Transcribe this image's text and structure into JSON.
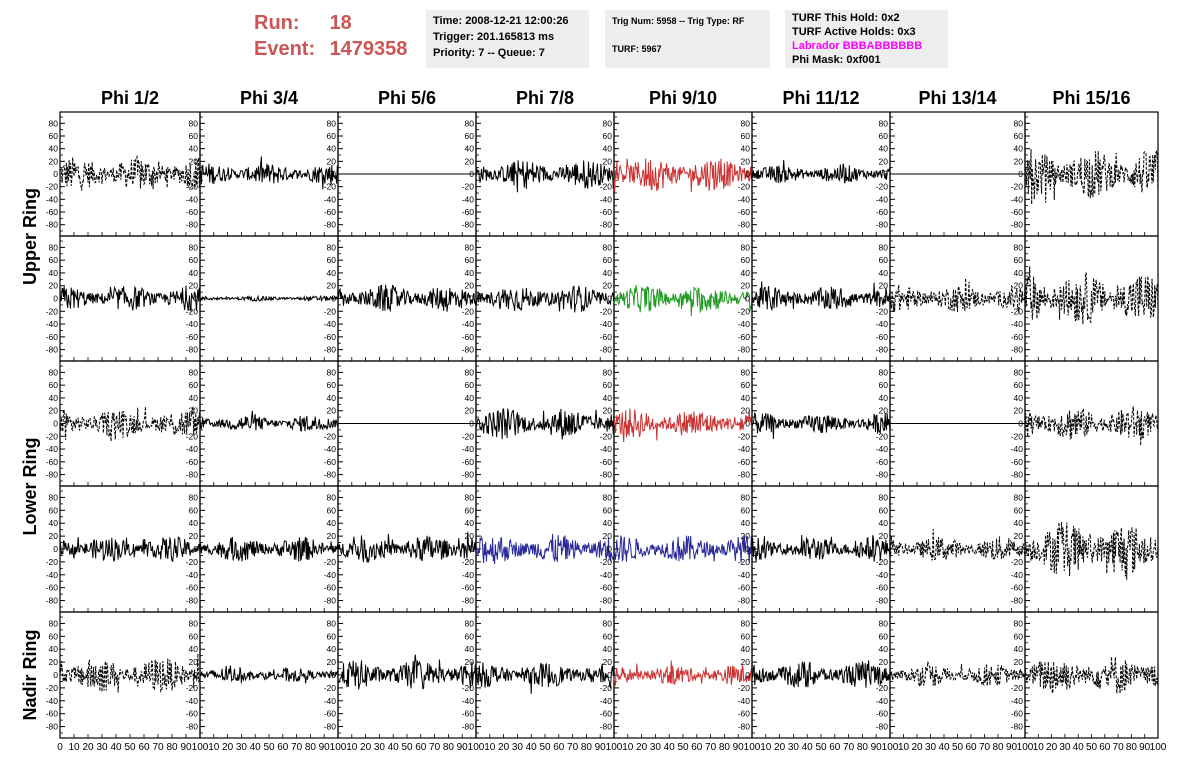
{
  "header": {
    "run_label": "Run:",
    "run_value": "18",
    "event_label": "Event:",
    "event_value": "1479358",
    "box1": [
      "Time: 2008-12-21 12:00:26",
      "Trigger: 201.165813 ms",
      "Priority: 7 -- Queue: 7"
    ],
    "box2_line1": "Trig Num: 5958 -- Trig Type: RF",
    "box2_line2": "TURF: 5967",
    "box3_line1": "TURF This Hold: 0x2",
    "box3_line2": "TURF Active Holds: 0x3",
    "box3_line3": "Labrador BBBABBBBBB",
    "box3_line4": "Phi Mask: 0xf001"
  },
  "colors": {
    "run_text": "#cc5555",
    "info_bg": "#eeeeee",
    "labrador": "#ff00ff",
    "trace_black": "#000000",
    "trace_red": "#cc3333",
    "trace_green": "#229922",
    "trace_blue": "#2a2a99"
  },
  "chart_data": {
    "type": "line",
    "columns": [
      "Phi 1/2",
      "Phi 3/4",
      "Phi 5/6",
      "Phi 7/8",
      "Phi 9/10",
      "Phi 11/12",
      "Phi 13/14",
      "Phi 15/16"
    ],
    "row_groups": [
      {
        "label": "Upper Ring",
        "rows": [
          0,
          1
        ]
      },
      {
        "label": "Lower Ring",
        "rows": [
          2,
          3
        ]
      },
      {
        "label": "Nadir Ring",
        "rows": [
          4
        ]
      }
    ],
    "xlim": [
      0,
      100
    ],
    "xticks": [
      0,
      10,
      20,
      30,
      40,
      50,
      60,
      70,
      80,
      90,
      100
    ],
    "xtick_labels_first": [
      "0",
      "10",
      "20",
      "30",
      "40",
      "50",
      "60",
      "70",
      "80",
      "90",
      "100"
    ],
    "xtick_labels_other": [
      "10",
      "20",
      "30",
      "40",
      "50",
      "60",
      "70",
      "80",
      "90",
      "100"
    ],
    "ylim": [
      -90,
      90
    ],
    "yticks": [
      -80,
      -60,
      -40,
      -20,
      0,
      20,
      40,
      60,
      80
    ],
    "ytick_labels": [
      "-80",
      "-60",
      "-40",
      "-20",
      "0",
      "20",
      "40",
      "60",
      "80"
    ],
    "panels": [
      [
        {
          "amp": 28,
          "style": "dashed",
          "color": "black"
        },
        {
          "amp": 18,
          "style": "solid",
          "color": "black"
        },
        {
          "amp": 0,
          "style": "solid",
          "color": "black"
        },
        {
          "amp": 24,
          "style": "solid",
          "color": "black"
        },
        {
          "amp": 28,
          "style": "solid",
          "color": "red"
        },
        {
          "amp": 15,
          "style": "solid",
          "color": "black"
        },
        {
          "amp": 0,
          "style": "solid",
          "color": "black"
        },
        {
          "amp": 40,
          "style": "dashed",
          "color": "black"
        }
      ],
      [
        {
          "amp": 20,
          "style": "solid",
          "color": "black"
        },
        {
          "amp": 4,
          "style": "solid",
          "color": "black"
        },
        {
          "amp": 22,
          "style": "solid",
          "color": "black"
        },
        {
          "amp": 22,
          "style": "solid",
          "color": "black"
        },
        {
          "amp": 22,
          "style": "solid",
          "color": "green"
        },
        {
          "amp": 20,
          "style": "solid",
          "color": "black"
        },
        {
          "amp": 22,
          "style": "dashed",
          "color": "black"
        },
        {
          "amp": 42,
          "style": "dashed",
          "color": "black"
        }
      ],
      [
        {
          "amp": 24,
          "style": "dashed",
          "color": "black"
        },
        {
          "amp": 14,
          "style": "solid",
          "color": "black"
        },
        {
          "amp": 0,
          "style": "solid",
          "color": "black"
        },
        {
          "amp": 26,
          "style": "solid",
          "color": "black"
        },
        {
          "amp": 24,
          "style": "solid",
          "color": "red"
        },
        {
          "amp": 17,
          "style": "solid",
          "color": "black"
        },
        {
          "amp": 0,
          "style": "solid",
          "color": "black"
        },
        {
          "amp": 28,
          "style": "dashed",
          "color": "black"
        }
      ],
      [
        {
          "amp": 20,
          "style": "solid",
          "color": "black"
        },
        {
          "amp": 20,
          "style": "solid",
          "color": "black"
        },
        {
          "amp": 22,
          "style": "solid",
          "color": "black"
        },
        {
          "amp": 24,
          "style": "solid",
          "color": "blue"
        },
        {
          "amp": 22,
          "style": "solid",
          "color": "blue"
        },
        {
          "amp": 20,
          "style": "solid",
          "color": "black"
        },
        {
          "amp": 20,
          "style": "dashed",
          "color": "black"
        },
        {
          "amp": 45,
          "style": "dashed",
          "color": "black"
        }
      ],
      [
        {
          "amp": 28,
          "style": "dashed",
          "color": "black"
        },
        {
          "amp": 12,
          "style": "solid",
          "color": "black"
        },
        {
          "amp": 24,
          "style": "solid",
          "color": "black"
        },
        {
          "amp": 20,
          "style": "solid",
          "color": "black"
        },
        {
          "amp": 16,
          "style": "solid",
          "color": "red"
        },
        {
          "amp": 22,
          "style": "solid",
          "color": "black"
        },
        {
          "amp": 18,
          "style": "dashed",
          "color": "black"
        },
        {
          "amp": 32,
          "style": "dashed",
          "color": "black"
        }
      ]
    ]
  }
}
